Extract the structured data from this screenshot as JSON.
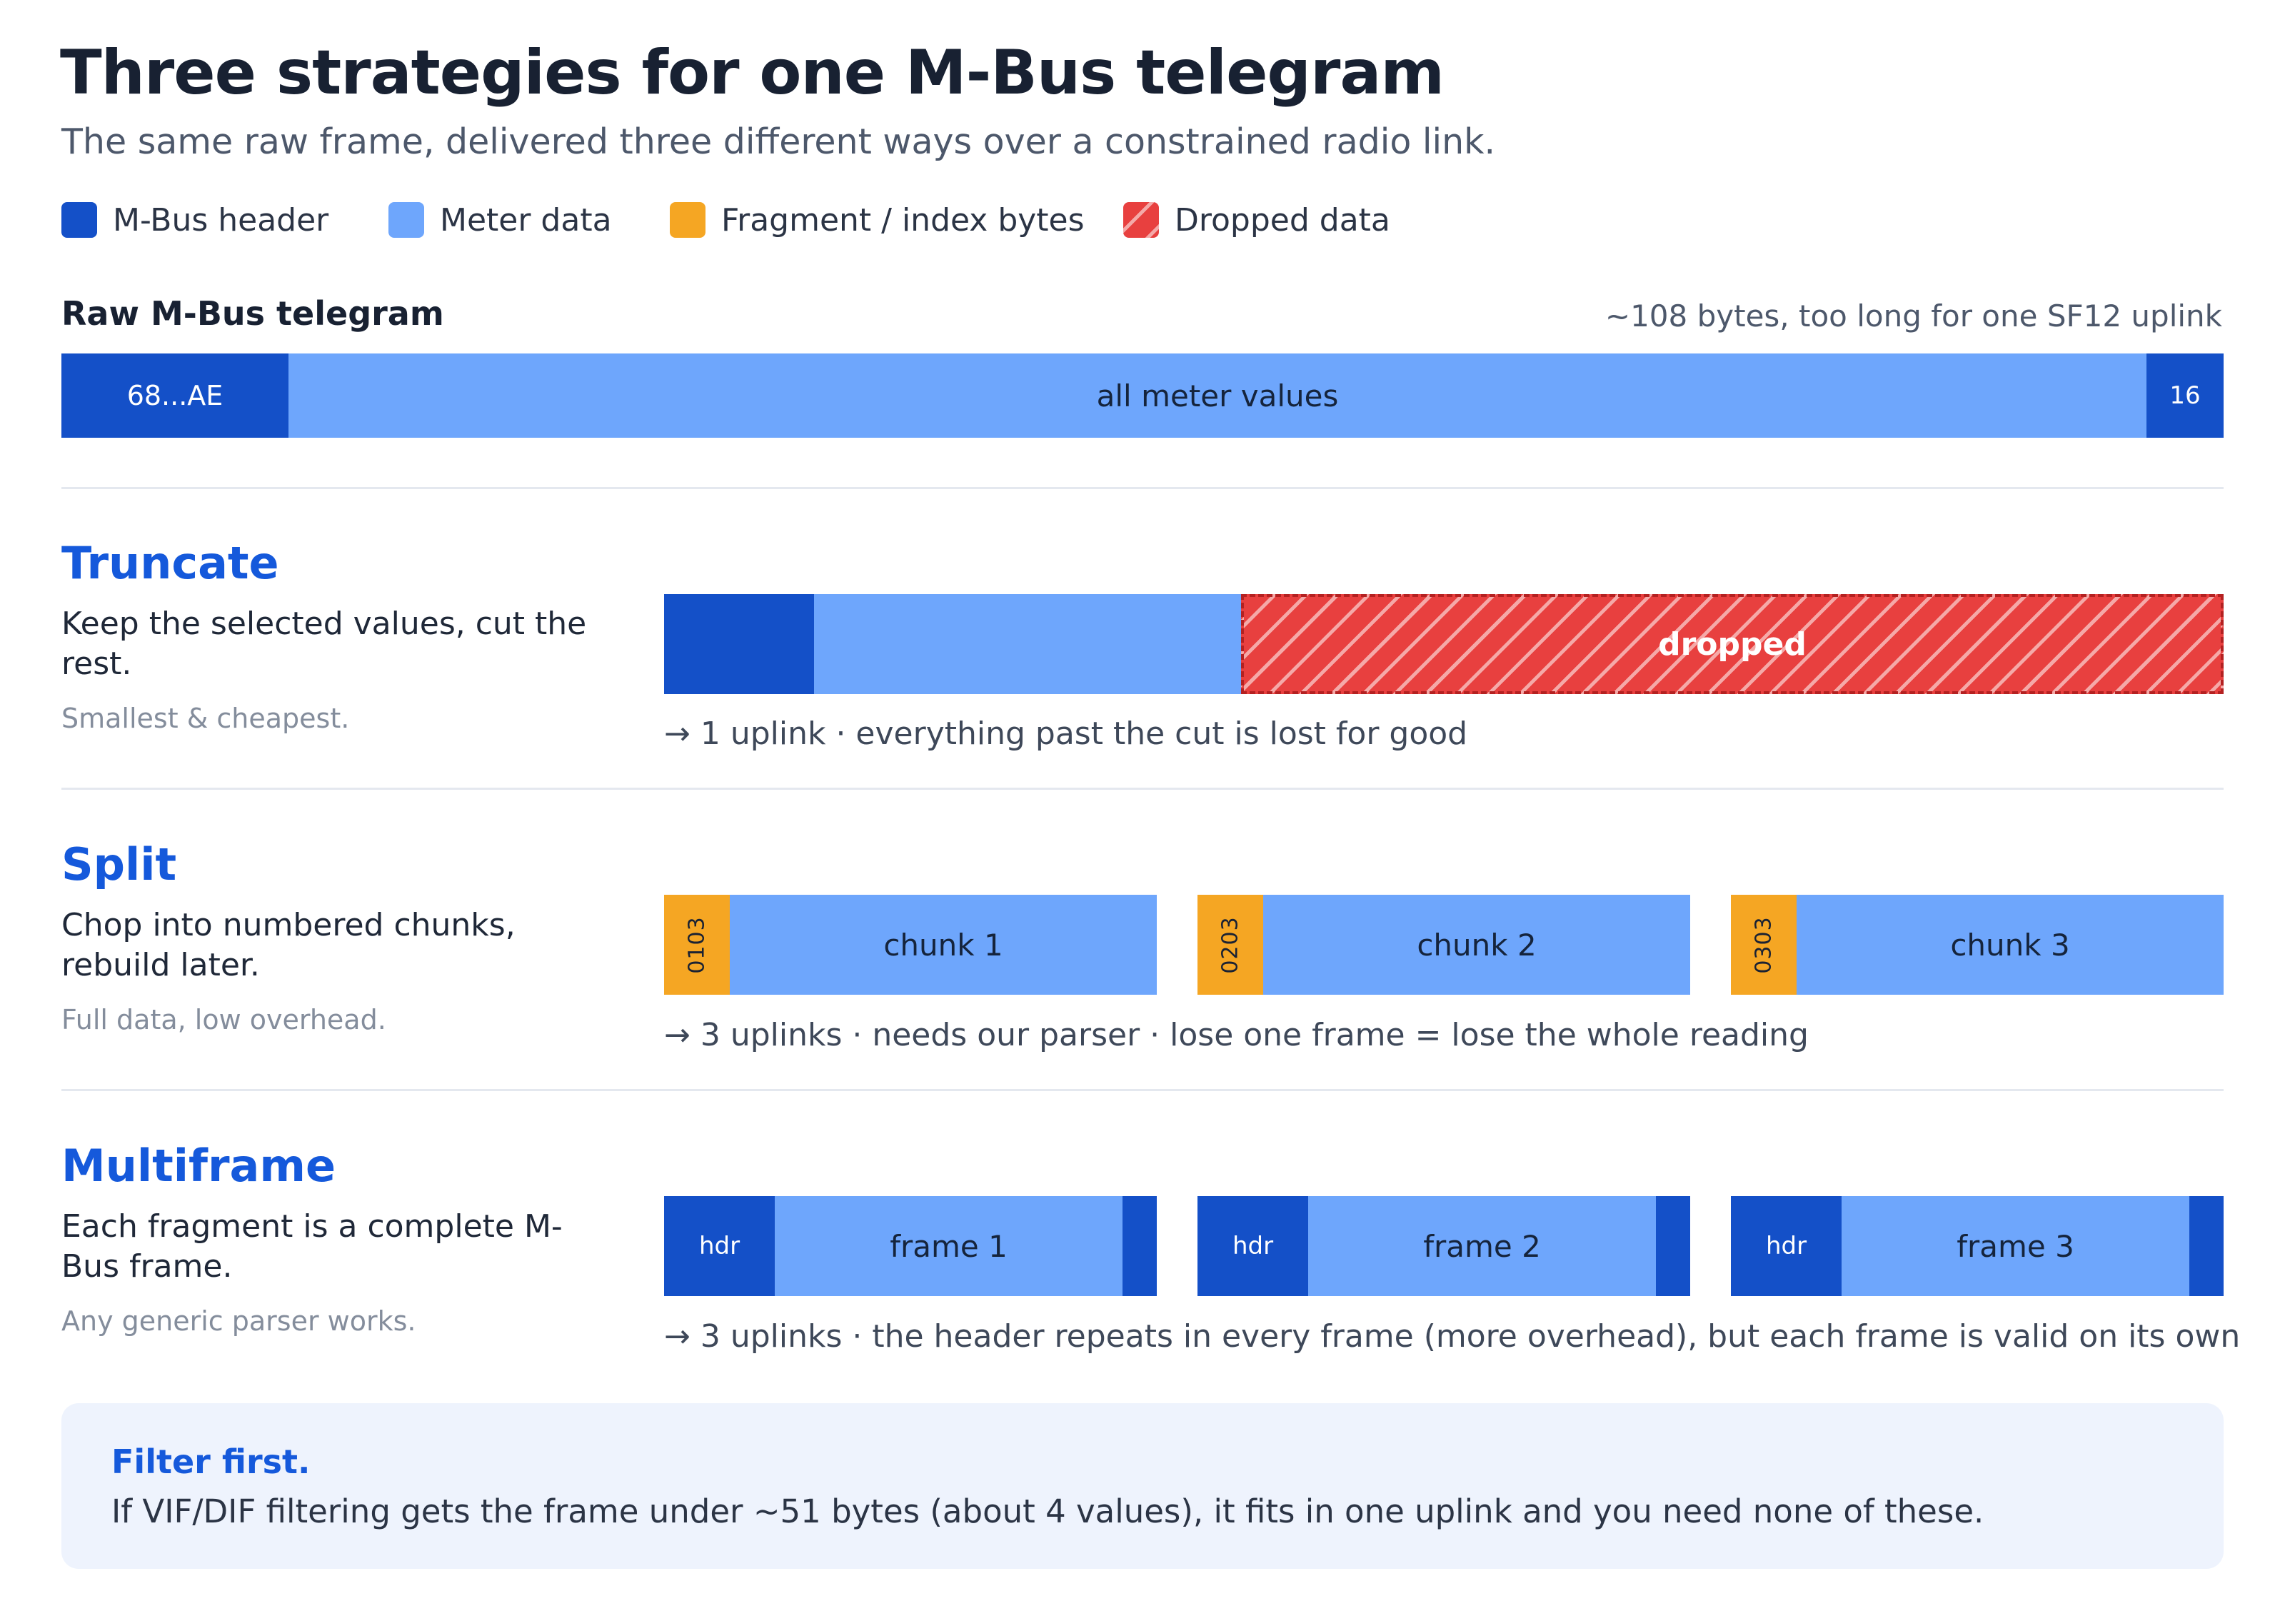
{
  "title": "Three strategies for one M-Bus telegram",
  "subtitle": "The same raw frame, delivered three different ways over a constrained radio link.",
  "legend": [
    {
      "label": "M-Bus header",
      "color": "#1450c8"
    },
    {
      "label": "Meter data",
      "color": "#6ea6fc"
    },
    {
      "label": "Fragment / index bytes",
      "color": "#f5a623"
    },
    {
      "label": "Dropped data",
      "color": "#e8403f"
    }
  ],
  "raw": {
    "title": "Raw M-Bus telegram",
    "note": "~108 bytes, too long for one SF12 uplink",
    "start_label": "68...AE",
    "data_label": "all meter values",
    "end_label": "16"
  },
  "truncate": {
    "title": "Truncate",
    "description": "Keep the selected values, cut the rest.",
    "tag": "Smallest & cheapest.",
    "dropped_label": "dropped",
    "note": "→ 1 uplink · everything past the cut is lost for good"
  },
  "split": {
    "title": "Split",
    "description": "Chop into numbered chunks, rebuild later.",
    "tag": "Full data, low overhead.",
    "chunks": [
      {
        "index": "0103",
        "label": "chunk 1"
      },
      {
        "index": "0203",
        "label": "chunk 2"
      },
      {
        "index": "0303",
        "label": "chunk 3"
      }
    ],
    "note": "→ 3 uplinks · needs our parser · lose one frame = lose the whole reading"
  },
  "multiframe": {
    "title": "Multiframe",
    "description": "Each fragment is a complete M-Bus frame.",
    "tag": "Any generic parser works.",
    "frames": [
      {
        "header": "hdr",
        "label": "frame 1"
      },
      {
        "header": "hdr",
        "label": "frame 2"
      },
      {
        "header": "hdr",
        "label": "frame 3"
      }
    ],
    "note": "→ 3 uplinks · the header repeats in every frame (more overhead), but each frame is valid on its own"
  },
  "callout": {
    "title": "Filter first.",
    "text": "If VIF/DIF filtering gets the frame under ~51 bytes (about 4 values), it fits in one uplink and you need none of these."
  }
}
